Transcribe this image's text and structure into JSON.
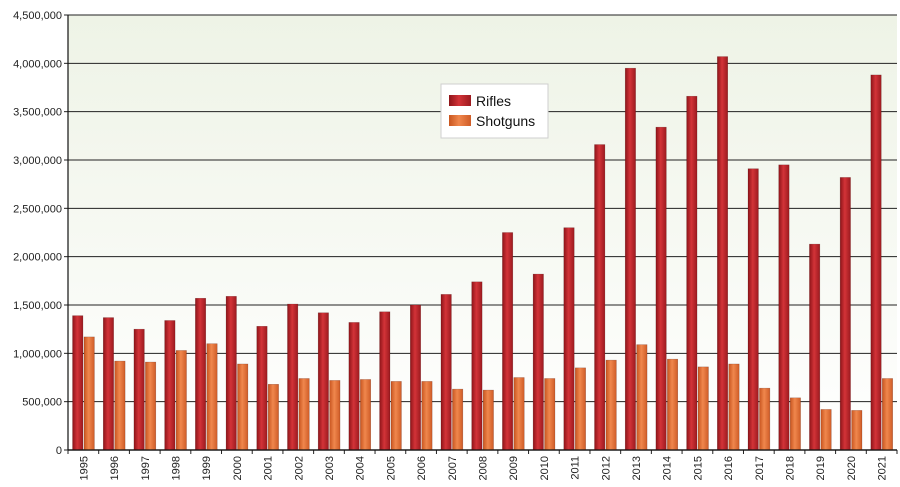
{
  "chart_data": {
    "type": "bar",
    "title": "",
    "xlabel": "",
    "ylabel": "",
    "categories": [
      "1995",
      "1996",
      "1997",
      "1998",
      "1999",
      "2000",
      "2001",
      "2002",
      "2003",
      "2004",
      "2005",
      "2006",
      "2007",
      "2008",
      "2009",
      "2010",
      "2011",
      "2012",
      "2013",
      "2014",
      "2015",
      "2016",
      "2017",
      "2018",
      "2019",
      "2020",
      "2021"
    ],
    "series": [
      {
        "name": "Rifles",
        "color": "#c0282d",
        "values": [
          1390000,
          1370000,
          1250000,
          1340000,
          1570000,
          1590000,
          1280000,
          1510000,
          1420000,
          1320000,
          1430000,
          1500000,
          1610000,
          1740000,
          2250000,
          1820000,
          2300000,
          3160000,
          3950000,
          3340000,
          3660000,
          4070000,
          2910000,
          2950000,
          2130000,
          2820000,
          3880000
        ]
      },
      {
        "name": "Shotguns",
        "color": "#e8703a",
        "values": [
          1170000,
          920000,
          910000,
          1030000,
          1100000,
          890000,
          680000,
          740000,
          720000,
          730000,
          710000,
          710000,
          630000,
          620000,
          750000,
          740000,
          850000,
          930000,
          1090000,
          940000,
          860000,
          890000,
          640000,
          540000,
          420000,
          410000,
          740000
        ]
      }
    ],
    "ylim": [
      0,
      4500000
    ],
    "yticks": [
      0,
      500000,
      1000000,
      1500000,
      2000000,
      2500000,
      3000000,
      3500000,
      4000000,
      4500000
    ],
    "ytick_labels": [
      "0",
      "500,000",
      "1,000,000",
      "1,500,000",
      "2,000,000",
      "2,500,000",
      "3,000,000",
      "3,500,000",
      "4,000,000",
      "4,500,000"
    ],
    "grid": true,
    "legend_position": "top-center"
  }
}
